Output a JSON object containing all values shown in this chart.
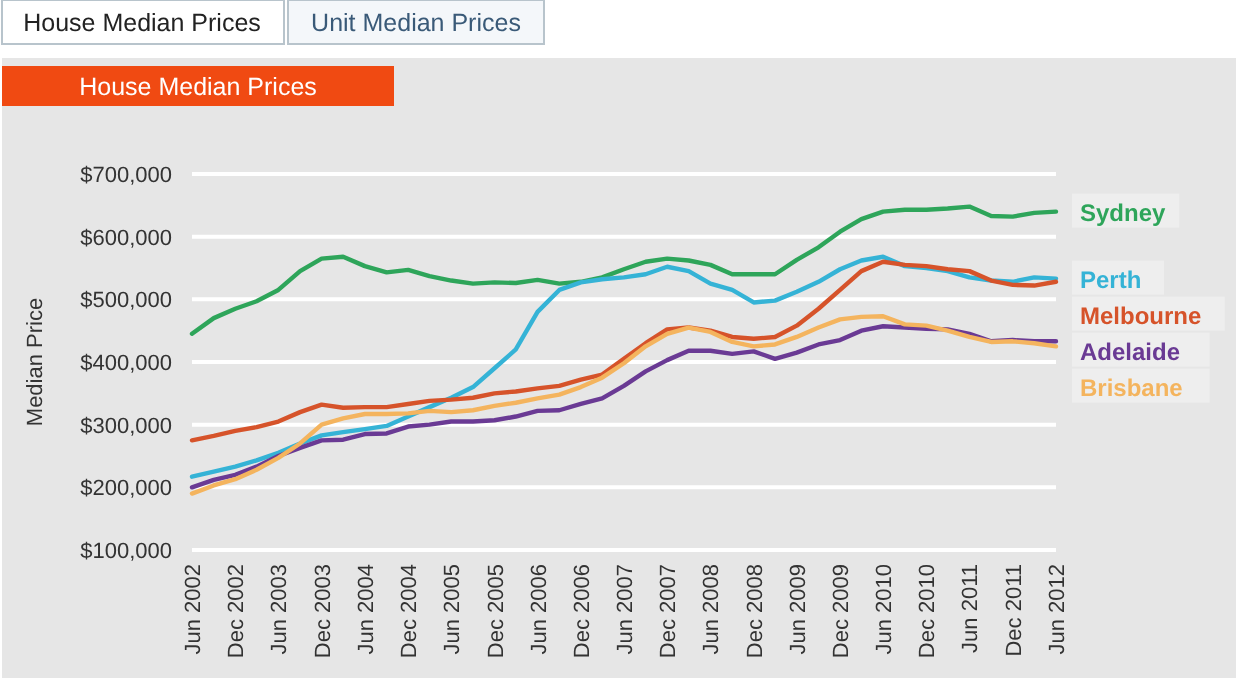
{
  "chart_data": {
    "type": "line",
    "title": "House Median Prices",
    "ylabel": "Median Price",
    "annotations": [
      "House Median Prices",
      "Unit Median Prices"
    ],
    "x": [
      "2002-06",
      "2002-09",
      "2002-12",
      "2003-03",
      "2003-06",
      "2003-09",
      "2003-12",
      "2004-03",
      "2004-06",
      "2004-09",
      "2004-12",
      "2005-03",
      "2005-06",
      "2005-09",
      "2005-12",
      "2006-03",
      "2006-06",
      "2006-09",
      "2006-12",
      "2007-03",
      "2007-06",
      "2007-09",
      "2007-12",
      "2008-03",
      "2008-06",
      "2008-09",
      "2008-12",
      "2009-03",
      "2009-06",
      "2009-09",
      "2009-12",
      "2010-03",
      "2010-06",
      "2010-09",
      "2010-12",
      "2011-03",
      "2011-06",
      "2011-09",
      "2011-12",
      "2012-03",
      "2012-06"
    ],
    "series": [
      {
        "name": "Sydney",
        "color": "#2ea55a",
        "values": [
          445000,
          470000,
          485000,
          497000,
          515000,
          545000,
          565000,
          568000,
          553000,
          543000,
          547000,
          537000,
          530000,
          525000,
          527000,
          526000,
          531000,
          525000,
          528000,
          535000,
          548000,
          560000,
          565000,
          562000,
          555000,
          540000,
          540000,
          540000,
          563000,
          583000,
          608000,
          628000,
          640000,
          643000,
          643000,
          645000,
          648000,
          633000,
          632000,
          638000,
          640000
        ]
      },
      {
        "name": "Perth",
        "color": "#35b3d6",
        "values": [
          217000,
          225000,
          233000,
          243000,
          255000,
          270000,
          283000,
          288000,
          293000,
          298000,
          313000,
          328000,
          343000,
          360000,
          390000,
          420000,
          480000,
          515000,
          527000,
          532000,
          535000,
          540000,
          552000,
          545000,
          525000,
          515000,
          495000,
          498000,
          512000,
          528000,
          548000,
          562000,
          568000,
          553000,
          550000,
          545000,
          535000,
          530000,
          528000,
          535000,
          533000
        ]
      },
      {
        "name": "Melbourne",
        "color": "#d6532a",
        "values": [
          275000,
          282000,
          290000,
          296000,
          305000,
          320000,
          332000,
          327000,
          328000,
          328000,
          333000,
          338000,
          340000,
          343000,
          350000,
          353000,
          358000,
          362000,
          372000,
          380000,
          405000,
          430000,
          452000,
          455000,
          450000,
          440000,
          437000,
          440000,
          458000,
          485000,
          515000,
          545000,
          560000,
          555000,
          553000,
          548000,
          545000,
          530000,
          523000,
          522000,
          528000
        ]
      },
      {
        "name": "Adelaide",
        "color": "#6a3a94",
        "values": [
          200000,
          212000,
          220000,
          233000,
          250000,
          263000,
          275000,
          276000,
          285000,
          286000,
          297000,
          300000,
          305000,
          305000,
          307000,
          313000,
          322000,
          323000,
          333000,
          342000,
          362000,
          385000,
          403000,
          418000,
          418000,
          413000,
          417000,
          405000,
          415000,
          428000,
          435000,
          450000,
          457000,
          455000,
          453000,
          452000,
          445000,
          433000,
          435000,
          433000,
          433000
        ]
      },
      {
        "name": "Brisbane",
        "color": "#f4b45e",
        "values": [
          190000,
          203000,
          213000,
          228000,
          247000,
          270000,
          300000,
          310000,
          317000,
          317000,
          318000,
          322000,
          320000,
          323000,
          330000,
          335000,
          342000,
          348000,
          360000,
          375000,
          398000,
          425000,
          445000,
          455000,
          448000,
          432000,
          425000,
          428000,
          440000,
          455000,
          468000,
          472000,
          473000,
          460000,
          458000,
          450000,
          440000,
          432000,
          433000,
          430000,
          425000
        ]
      }
    ],
    "xlim": [
      "2002-06",
      "2012-06"
    ],
    "xticks": [
      {
        "value": "2002-06",
        "label": "Jun 2002"
      },
      {
        "value": "2002-12",
        "label": "Dec 2002"
      },
      {
        "value": "2003-06",
        "label": "Jun 2003"
      },
      {
        "value": "2003-12",
        "label": "Dec 2003"
      },
      {
        "value": "2004-06",
        "label": "Jun 2004"
      },
      {
        "value": "2004-12",
        "label": "Dec 2004"
      },
      {
        "value": "2005-06",
        "label": "Jun 2005"
      },
      {
        "value": "2005-12",
        "label": "Dec 2005"
      },
      {
        "value": "2006-06",
        "label": "Jun 2006"
      },
      {
        "value": "2006-12",
        "label": "Dec 2006"
      },
      {
        "value": "2007-06",
        "label": "Jun 2007"
      },
      {
        "value": "2007-12",
        "label": "Dec 2007"
      },
      {
        "value": "2008-06",
        "label": "Jun 2008"
      },
      {
        "value": "2008-12",
        "label": "Dec 2008"
      },
      {
        "value": "2009-06",
        "label": "Jun 2009"
      },
      {
        "value": "2009-12",
        "label": "Dec 2009"
      },
      {
        "value": "2010-06",
        "label": "Jun 2010"
      },
      {
        "value": "2010-12",
        "label": "Dec 2010"
      },
      {
        "value": "2011-06",
        "label": "Jun 2011"
      },
      {
        "value": "2011-12",
        "label": "Dec 2011"
      },
      {
        "value": "2012-06",
        "label": "Jun 2012"
      }
    ],
    "ylim": [
      100000,
      700000
    ],
    "yticks": [
      {
        "value": 100000,
        "label": "$100,000"
      },
      {
        "value": 200000,
        "label": "$200,000"
      },
      {
        "value": 300000,
        "label": "$300,000"
      },
      {
        "value": 400000,
        "label": "$400,000"
      },
      {
        "value": 500000,
        "label": "$500,000"
      },
      {
        "value": 600000,
        "label": "$600,000"
      },
      {
        "value": 700000,
        "label": "$700,000"
      }
    ],
    "grid": "y",
    "legend": false,
    "marker": "none",
    "line_style": "solid"
  }
}
